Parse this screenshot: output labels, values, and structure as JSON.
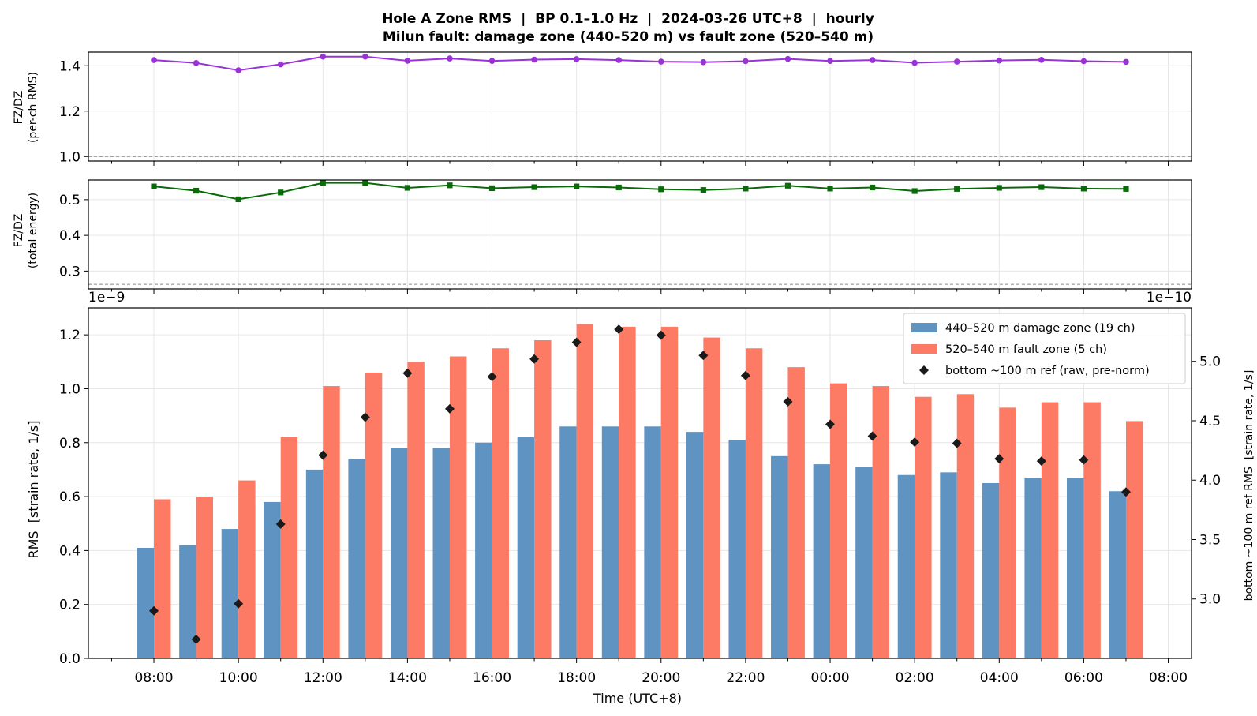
{
  "figure": {
    "title_line1": "Hole A Zone RMS  |  BP 0.1–1.0 Hz  |  2024-03-26 UTC+8  |  hourly",
    "title_line2": "Milun fault: damage zone (440–520 m) vs fault zone (520–540 m)"
  },
  "colors": {
    "damage_zone": "#5f93c2",
    "fault_zone": "#fd7a64",
    "reference": "#1a1a1a",
    "ratio_rms": "#9a33d6",
    "ratio_energy": "#0a6a0a",
    "grid": "#e6e6e6",
    "baseline": "#888888"
  },
  "chart_data": [
    {
      "type": "line",
      "panel": "top",
      "ylabel_line1": "FZ/DZ",
      "ylabel_line2": "(per-ch RMS)",
      "ylim": [
        0.98,
        1.46
      ],
      "yticks": [
        1.0,
        1.2,
        1.4
      ],
      "ytick_labels": [
        "1.0",
        "1.2",
        "1.4"
      ],
      "reference_line": 1.0,
      "marker": "circle",
      "x_hours": [
        0,
        1,
        2,
        3,
        4,
        5,
        6,
        7,
        8,
        9,
        10,
        11,
        12,
        13,
        14,
        15,
        16,
        17,
        18,
        19,
        20,
        21,
        22,
        23
      ],
      "values": [
        1.425,
        1.412,
        1.38,
        1.406,
        1.44,
        1.44,
        1.422,
        1.432,
        1.421,
        1.427,
        1.429,
        1.425,
        1.418,
        1.416,
        1.42,
        1.43,
        1.421,
        1.425,
        1.413,
        1.418,
        1.423,
        1.426,
        1.42,
        1.417
      ]
    },
    {
      "type": "line",
      "panel": "middle",
      "ylabel_line1": "FZ/DZ",
      "ylabel_line2": "(total energy)",
      "ylim": [
        0.25,
        0.555
      ],
      "yticks": [
        0.3,
        0.4,
        0.5
      ],
      "ytick_labels": [
        "0.3",
        "0.4",
        "0.5"
      ],
      "reference_line": 0.263,
      "marker": "square",
      "x_hours": [
        0,
        1,
        2,
        3,
        4,
        5,
        6,
        7,
        8,
        9,
        10,
        11,
        12,
        13,
        14,
        15,
        16,
        17,
        18,
        19,
        20,
        21,
        22,
        23
      ],
      "values": [
        0.537,
        0.525,
        0.501,
        0.52,
        0.547,
        0.547,
        0.533,
        0.54,
        0.532,
        0.535,
        0.537,
        0.534,
        0.529,
        0.527,
        0.531,
        0.539,
        0.531,
        0.534,
        0.524,
        0.53,
        0.533,
        0.535,
        0.531,
        0.53
      ]
    },
    {
      "type": "bar",
      "panel": "bottom",
      "xlabel": "Time (UTC+8)",
      "xtick_labels": [
        "08:00",
        "10:00",
        "12:00",
        "14:00",
        "16:00",
        "18:00",
        "20:00",
        "22:00",
        "00:00",
        "02:00",
        "04:00",
        "06:00",
        "08:00"
      ],
      "xtick_hours": [
        0,
        2,
        4,
        6,
        8,
        10,
        12,
        14,
        16,
        18,
        20,
        22,
        24
      ],
      "xlim": [
        -1.55,
        24.55
      ],
      "ylabel": "RMS  [strain rate, 1/s]",
      "y_offset_left": "1e−9",
      "ylim": [
        0,
        1.3
      ],
      "yticks": [
        0.0,
        0.2,
        0.4,
        0.6,
        0.8,
        1.0,
        1.2
      ],
      "ytick_labels": [
        "0.0",
        "0.2",
        "0.4",
        "0.6",
        "0.8",
        "1.0",
        "1.2"
      ],
      "y2label": "bottom ~100 m ref RMS  [strain rate, 1/s]",
      "y2_offset": "1e−10",
      "y2lim": [
        2.5,
        5.45
      ],
      "y2ticks": [
        3.0,
        3.5,
        4.0,
        4.5,
        5.0
      ],
      "y2tick_labels": [
        "3.0",
        "3.5",
        "4.0",
        "4.5",
        "5.0"
      ],
      "legend_position": "upper right",
      "categories": [
        "08:00",
        "09:00",
        "10:00",
        "11:00",
        "12:00",
        "13:00",
        "14:00",
        "15:00",
        "16:00",
        "17:00",
        "18:00",
        "19:00",
        "20:00",
        "21:00",
        "22:00",
        "23:00",
        "00:00",
        "01:00",
        "02:00",
        "03:00",
        "04:00",
        "05:00",
        "06:00",
        "07:00"
      ],
      "series": [
        {
          "name": "440–520 m  damage zone (19 ch)",
          "kind": "bar",
          "axis": "left",
          "values": [
            0.41,
            0.42,
            0.48,
            0.58,
            0.7,
            0.74,
            0.78,
            0.78,
            0.8,
            0.82,
            0.86,
            0.86,
            0.86,
            0.84,
            0.81,
            0.75,
            0.72,
            0.71,
            0.68,
            0.69,
            0.65,
            0.67,
            0.67,
            0.62
          ]
        },
        {
          "name": "520–540 m  fault zone (5 ch)",
          "kind": "bar",
          "axis": "left",
          "values": [
            0.59,
            0.6,
            0.66,
            0.82,
            1.01,
            1.06,
            1.1,
            1.12,
            1.15,
            1.18,
            1.24,
            1.23,
            1.23,
            1.19,
            1.15,
            1.08,
            1.02,
            1.01,
            0.97,
            0.98,
            0.93,
            0.95,
            0.95,
            0.88
          ]
        },
        {
          "name": "bottom ~100 m ref (raw, pre-norm)",
          "kind": "scatter",
          "axis": "right",
          "values": [
            2.9,
            2.66,
            2.96,
            3.63,
            4.21,
            4.53,
            4.9,
            4.6,
            4.87,
            5.02,
            5.16,
            5.27,
            5.22,
            5.05,
            4.88,
            4.66,
            4.47,
            4.37,
            4.32,
            4.31,
            4.18,
            4.16,
            4.17,
            3.9
          ]
        }
      ]
    }
  ]
}
